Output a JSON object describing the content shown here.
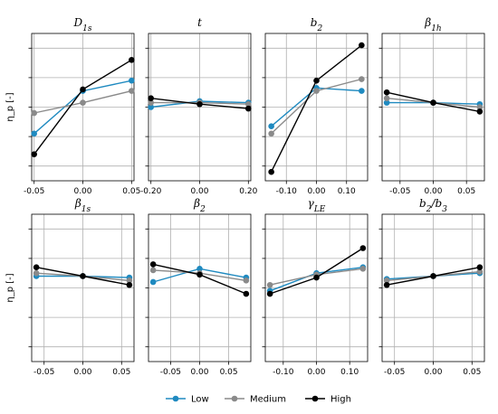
{
  "chart_data": {
    "type": "line",
    "ylabel": "η_p [-]",
    "grid": true,
    "legend": {
      "placement": "bottom-center",
      "entries": [
        {
          "name": "Low",
          "color": "#1f8ac0"
        },
        {
          "name": "Medium",
          "color": "#8a8a8a"
        },
        {
          "name": "High",
          "color": "#000000"
        }
      ]
    },
    "panels": [
      {
        "title": "D",
        "title_sub": "1s",
        "x": [
          -0.05,
          0.0,
          0.05
        ],
        "xlim": [
          -0.0525,
          0.0525
        ],
        "xticks": [
          -0.05,
          0.0,
          0.05
        ],
        "xtick_labels": [
          "-0.05",
          "0.00",
          "0.05"
        ],
        "ylim": [
          0,
          1
        ],
        "yticks": [
          0.1,
          0.3,
          0.5,
          0.7,
          0.9
        ],
        "yticks_labeled": false,
        "series": [
          {
            "name": "Low",
            "values": [
              0.32,
              0.61,
              0.68
            ]
          },
          {
            "name": "Medium",
            "values": [
              0.46,
              0.53,
              0.61
            ]
          },
          {
            "name": "High",
            "values": [
              0.18,
              0.62,
              0.82
            ]
          }
        ]
      },
      {
        "title": "t",
        "title_sub": "",
        "x": [
          -0.2,
          0.0,
          0.2
        ],
        "xlim": [
          -0.21,
          0.21
        ],
        "xticks": [
          -0.2,
          0.0,
          0.2
        ],
        "xtick_labels": [
          "-0.20",
          "0.00",
          "0.20"
        ],
        "ylim": [
          0,
          1
        ],
        "yticks": [
          0.1,
          0.3,
          0.5,
          0.7,
          0.9
        ],
        "yticks_labeled": false,
        "series": [
          {
            "name": "Low",
            "values": [
              0.5,
              0.54,
              0.53
            ]
          },
          {
            "name": "Medium",
            "values": [
              0.53,
              0.53,
              0.52
            ]
          },
          {
            "name": "High",
            "values": [
              0.56,
              0.52,
              0.49
            ]
          }
        ]
      },
      {
        "title": "b",
        "title_sub": "2",
        "x": [
          -0.15,
          0.0,
          0.15
        ],
        "xlim": [
          -0.17,
          0.17
        ],
        "xticks": [
          -0.1,
          0.0,
          0.1
        ],
        "xtick_labels": [
          "-0.10",
          "0.00",
          "0.10"
        ],
        "ylim": [
          0,
          1
        ],
        "yticks": [
          0.1,
          0.3,
          0.5,
          0.7,
          0.9
        ],
        "yticks_labeled": false,
        "series": [
          {
            "name": "Low",
            "values": [
              0.37,
              0.63,
              0.61
            ]
          },
          {
            "name": "Medium",
            "values": [
              0.32,
              0.61,
              0.69
            ]
          },
          {
            "name": "High",
            "values": [
              0.06,
              0.68,
              0.92
            ]
          }
        ]
      },
      {
        "title": "β",
        "title_sub": "1h",
        "x": [
          -0.07,
          0.0,
          0.07
        ],
        "xlim": [
          -0.077,
          0.077
        ],
        "xticks": [
          -0.05,
          0.0,
          0.05
        ],
        "xtick_labels": [
          "-0.05",
          "0.00",
          "0.05"
        ],
        "ylim": [
          0,
          1
        ],
        "yticks": [
          0.1,
          0.3,
          0.5,
          0.7,
          0.9
        ],
        "yticks_labeled": false,
        "series": [
          {
            "name": "Low",
            "values": [
              0.53,
              0.53,
              0.52
            ]
          },
          {
            "name": "Medium",
            "values": [
              0.56,
              0.53,
              0.5
            ]
          },
          {
            "name": "High",
            "values": [
              0.6,
              0.53,
              0.47
            ]
          }
        ]
      },
      {
        "title": "β",
        "title_sub": "1s",
        "x": [
          -0.06,
          0.0,
          0.06
        ],
        "xlim": [
          -0.066,
          0.066
        ],
        "xticks": [
          -0.05,
          0.0,
          0.05
        ],
        "xtick_labels": [
          "-0.05",
          "0.00",
          "0.05"
        ],
        "ylim": [
          0,
          1
        ],
        "yticks": [
          0.1,
          0.3,
          0.5,
          0.7,
          0.9
        ],
        "yticks_labeled": false,
        "series": [
          {
            "name": "Low",
            "values": [
              0.58,
              0.58,
              0.57
            ]
          },
          {
            "name": "Medium",
            "values": [
              0.6,
              0.58,
              0.55
            ]
          },
          {
            "name": "High",
            "values": [
              0.64,
              0.58,
              0.52
            ]
          }
        ]
      },
      {
        "title": "β",
        "title_sub": "2",
        "x": [
          -0.08,
          0.0,
          0.08
        ],
        "xlim": [
          -0.088,
          0.088
        ],
        "xticks": [
          -0.05,
          0.0,
          0.05
        ],
        "xtick_labels": [
          "-0.05",
          "0.00",
          "0.05"
        ],
        "ylim": [
          0,
          1
        ],
        "yticks": [
          0.1,
          0.3,
          0.5,
          0.7,
          0.9
        ],
        "yticks_labeled": false,
        "series": [
          {
            "name": "Low",
            "values": [
              0.54,
              0.63,
              0.57
            ]
          },
          {
            "name": "Medium",
            "values": [
              0.62,
              0.6,
              0.55
            ]
          },
          {
            "name": "High",
            "values": [
              0.66,
              0.59,
              0.46
            ]
          }
        ]
      },
      {
        "title": "γ",
        "title_sub": "LE",
        "x": [
          -0.14,
          0.0,
          0.14
        ],
        "xlim": [
          -0.154,
          0.154
        ],
        "xticks": [
          -0.1,
          0.0,
          0.1
        ],
        "xtick_labels": [
          "-0.10",
          "0.00",
          "0.10"
        ],
        "ylim": [
          0,
          1
        ],
        "yticks": [
          0.1,
          0.3,
          0.5,
          0.7,
          0.9
        ],
        "yticks_labeled": false,
        "series": [
          {
            "name": "Low",
            "values": [
              0.48,
              0.6,
              0.64
            ]
          },
          {
            "name": "Medium",
            "values": [
              0.52,
              0.59,
              0.63
            ]
          },
          {
            "name": "High",
            "values": [
              0.46,
              0.57,
              0.77
            ]
          }
        ]
      },
      {
        "title": "b",
        "title_sub": "2",
        "title_suffix": "/b",
        "title_suffix_sub": "3",
        "x": [
          -0.06,
          0.0,
          0.06
        ],
        "xlim": [
          -0.066,
          0.066
        ],
        "xticks": [
          -0.05,
          0.0,
          0.05
        ],
        "xtick_labels": [
          "-0.05",
          "0.00",
          "0.05"
        ],
        "ylim": [
          0,
          1
        ],
        "yticks": [
          0.1,
          0.3,
          0.5,
          0.7,
          0.9
        ],
        "yticks_labeled": false,
        "series": [
          {
            "name": "Low",
            "values": [
              0.56,
              0.58,
              0.6
            ]
          },
          {
            "name": "Medium",
            "values": [
              0.55,
              0.58,
              0.61
            ]
          },
          {
            "name": "High",
            "values": [
              0.52,
              0.58,
              0.64
            ]
          }
        ]
      }
    ]
  }
}
